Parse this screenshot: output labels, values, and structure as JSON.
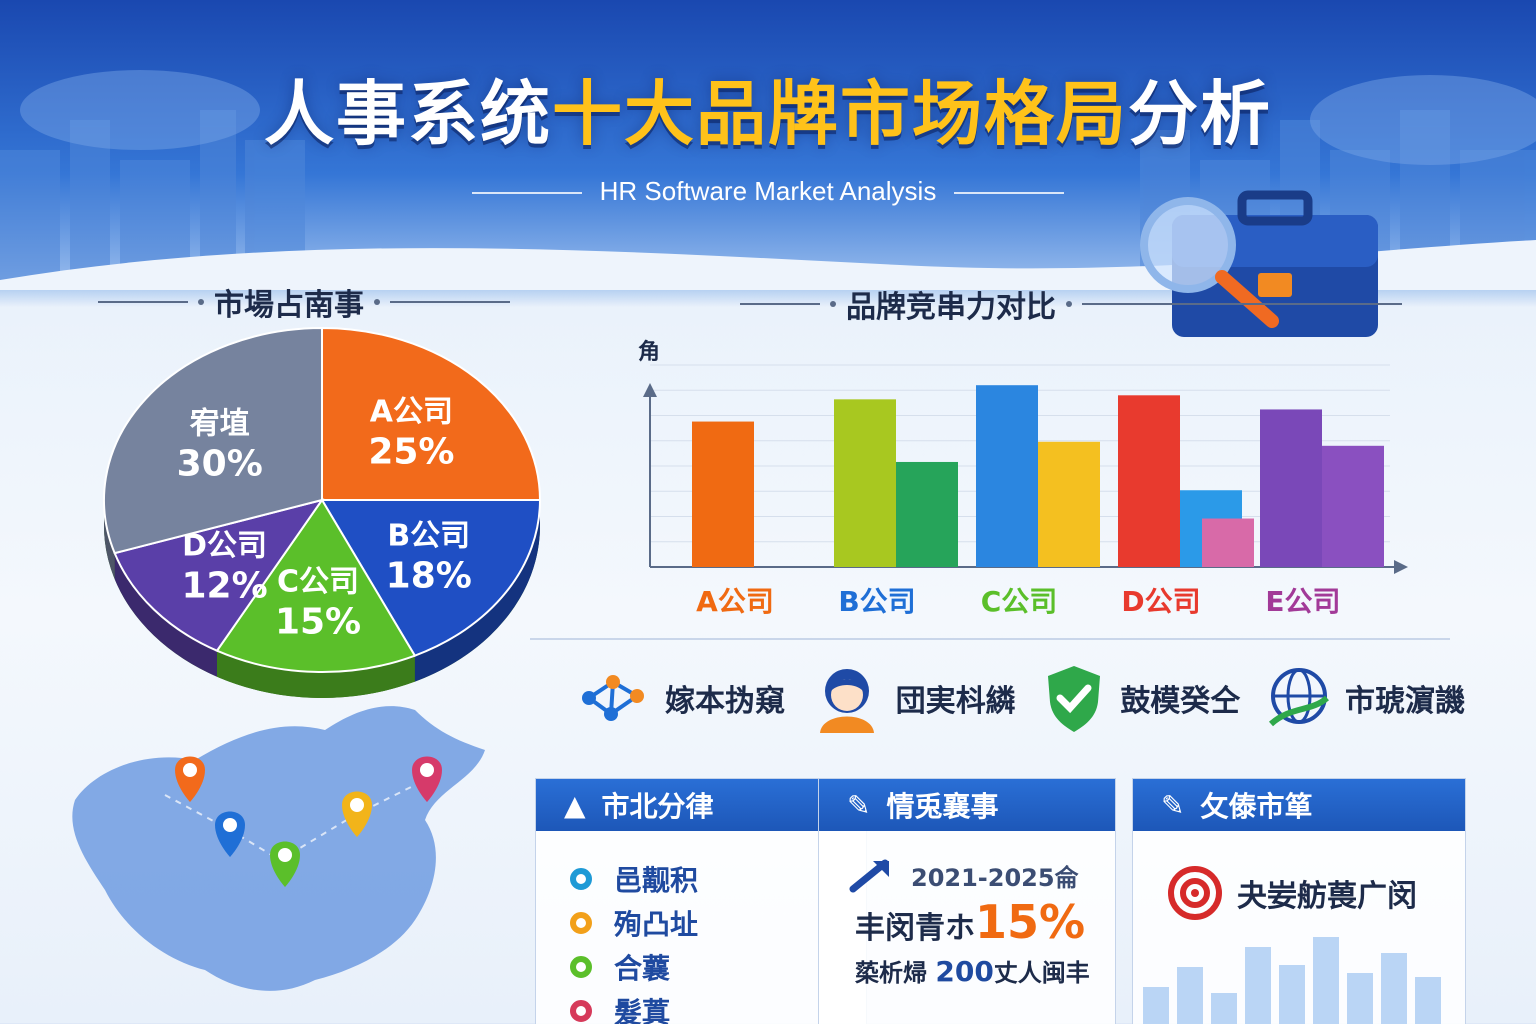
{
  "header": {
    "title_white": "人事系统",
    "title_yellow": "十大品牌市场格局",
    "title_end": "分析",
    "subtitle": "HR Software Market Analysis"
  },
  "sections": {
    "pie_title": "市場占南事",
    "bar_title": "品牌竞串力对比"
  },
  "chart_data": [
    {
      "type": "pie",
      "title": "市場占南事",
      "slices": [
        {
          "label": "A公司",
          "value": 25,
          "value_label": "25%",
          "color": "#f26a1b"
        },
        {
          "label": "B公司",
          "value": 18,
          "value_label": "18%",
          "color": "#1f4fc4"
        },
        {
          "label": "C公司",
          "value": 15,
          "value_label": "15%",
          "color": "#5bbf2a"
        },
        {
          "label": "D公司",
          "value": 12,
          "value_label": "12%",
          "color": "#5a3fa8"
        },
        {
          "label": "宥埴",
          "value": 30,
          "value_label": "30%",
          "color": "#76839e"
        }
      ]
    },
    {
      "type": "bar",
      "title": "品牌竞串力对比",
      "ylabel": "角",
      "categories": [
        "A公司",
        "B公司",
        "C公司",
        "D公司",
        "E公司"
      ],
      "category_colors": [
        "#f06a12",
        "#1f6fd6",
        "#5bbf2a",
        "#e83a2e",
        "#a23a98"
      ],
      "ylim": [
        0,
        100
      ],
      "series": [
        {
          "values": [
            72,
            83,
            90,
            85,
            78
          ],
          "colors": [
            "#f06a12",
            "#a8c820",
            "#2b86e0",
            "#e83a2e",
            "#7a48b8"
          ]
        },
        {
          "values": null,
          "colors": null
        },
        {
          "values": [
            0,
            52,
            62,
            38,
            60
          ],
          "colors": [
            "#f06a12",
            "#26a45a",
            "#f4c020",
            "#2b9ae8",
            "#8a50c0"
          ]
        }
      ],
      "overlay": [
        0,
        0,
        0,
        0,
        24
      ]
    }
  ],
  "features": [
    {
      "label": "嫁本㧑窺",
      "icon": "network-icon"
    },
    {
      "label": "団実枓繗",
      "icon": "person-icon"
    },
    {
      "label": "鼓模癸仝",
      "icon": "shield-check-icon"
    },
    {
      "label": "市琥濵譏",
      "icon": "globe-icon"
    }
  ],
  "cards": {
    "card1": {
      "title": "市北分律",
      "items": [
        {
          "label": "邑觏积",
          "color": "#1e9ad6"
        },
        {
          "label": "殉凸址",
          "color": "#f2a01a"
        },
        {
          "label": "合蘘",
          "color": "#5bbf2a"
        },
        {
          "label": "髮蒖",
          "color": "#d63a5a"
        }
      ]
    },
    "card2": {
      "title": "情兎襄事",
      "years": "2021-2025侖",
      "growth_prefix": "丰闵青ホ",
      "growth_value": "15%",
      "users_prefix": "蒅析㷌",
      "users_value": "200",
      "users_suffix": "丈人闽丰"
    },
    "card3": {
      "title": "攵傣市箪",
      "target_text": "夬妛舫葨广闵"
    }
  }
}
